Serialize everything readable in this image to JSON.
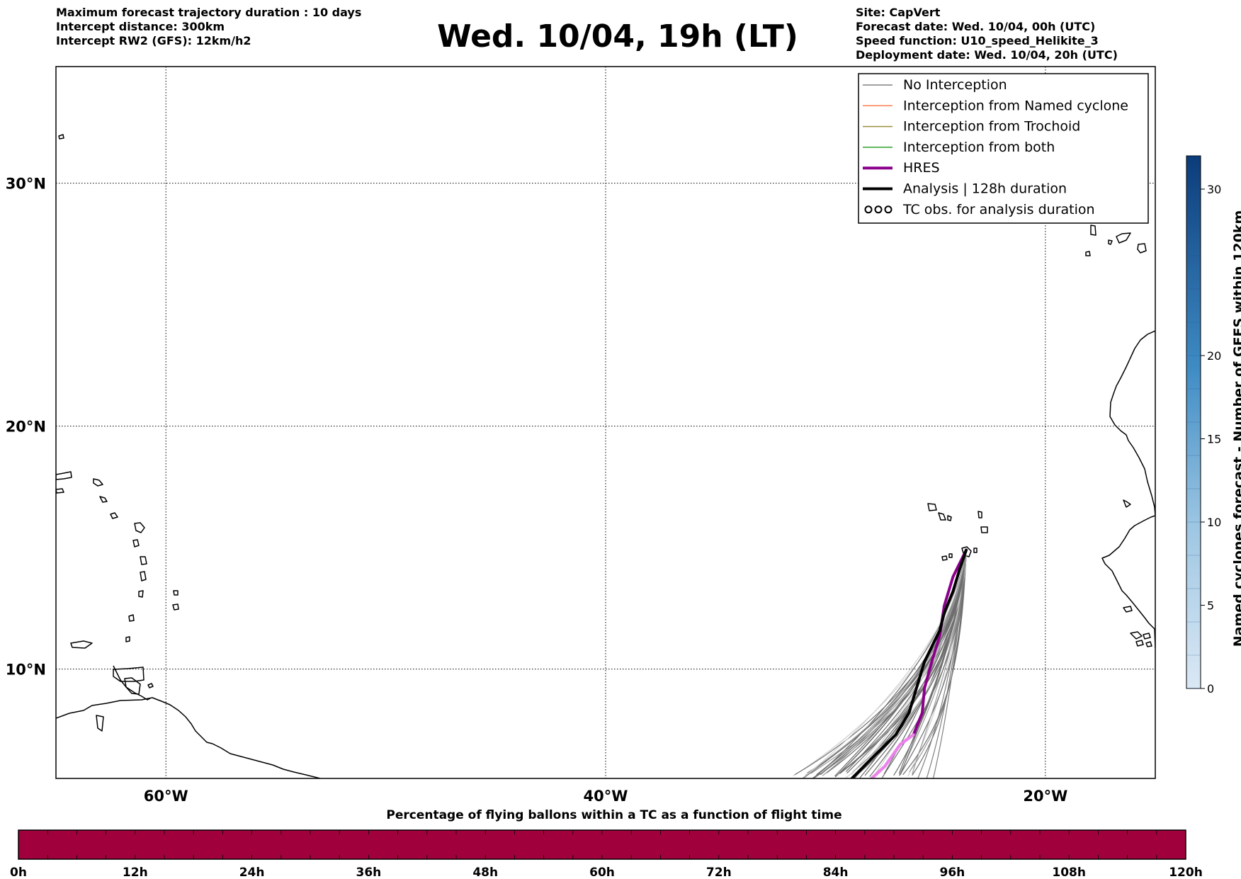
{
  "header": {
    "left_lines": [
      "Maximum forecast trajectory duration : 10 days",
      "Intercept distance: 300km",
      "Intercept RW2 (GFS):  12km/h2"
    ],
    "title": "Wed. 10/04, 19h (LT)",
    "right_lines": [
      "Site: CapVert",
      "Forecast date: Wed. 10/04, 00h (UTC)",
      "Speed function: U10_speed_Helikite_3",
      "Deployment date: Wed. 10/04, 20h (UTC)"
    ]
  },
  "map": {
    "lon_range": [
      -65,
      -15
    ],
    "lat_range": [
      5.5,
      34.8
    ],
    "lat_ticks": [
      {
        "value": 30,
        "label": "30°N"
      },
      {
        "value": 20,
        "label": "20°N"
      },
      {
        "value": 10,
        "label": "10°N"
      }
    ],
    "lon_ticks": [
      {
        "value": -60,
        "label": "60°W"
      },
      {
        "value": -40,
        "label": "40°W"
      },
      {
        "value": -20,
        "label": "20°W"
      }
    ],
    "grid": "dotted",
    "site": {
      "lon": -23.6,
      "lat": 14.9
    },
    "legend": {
      "placement": "top-right",
      "entries": [
        {
          "label": "No Interception",
          "color": "#808080",
          "style": "thin"
        },
        {
          "label": "Interception from Named cyclone",
          "color": "#ff7f50",
          "style": "thin"
        },
        {
          "label": "Interception from Trochoid",
          "color": "#9c8f3c",
          "style": "thin"
        },
        {
          "label": "Interception from both",
          "color": "#2ca02c",
          "style": "thin"
        },
        {
          "label": "HRES",
          "color": "#8b008b",
          "style": "thick"
        },
        {
          "label": "Analysis | 128h duration",
          "color": "#000000",
          "style": "thick"
        },
        {
          "label": "TC obs. for analysis duration",
          "color": "#000000",
          "style": "symbol"
        }
      ]
    }
  },
  "chart_data": [
    {
      "type": "line",
      "title": "",
      "xlabel": "",
      "ylabel": "",
      "xlim": [
        -65,
        -15
      ],
      "ylim": [
        5.5,
        34.8
      ],
      "series": [
        {
          "name": "HRES",
          "color": "#8b008b",
          "points": [
            [
              -23.6,
              14.9
            ],
            [
              -24.2,
              13.8
            ],
            [
              -24.6,
              12.6
            ],
            [
              -24.8,
              11.4
            ],
            [
              -25.2,
              10.2
            ],
            [
              -25.5,
              9.2
            ],
            [
              -25.6,
              8.2
            ],
            [
              -26.0,
              7.3
            ],
            [
              -26.6,
              6.9
            ],
            [
              -27.3,
              6.0
            ],
            [
              -27.9,
              5.5
            ]
          ]
        },
        {
          "name": "Analysis | 128h duration",
          "color": "#000000",
          "points": [
            [
              -23.6,
              14.9
            ],
            [
              -23.9,
              14.1
            ],
            [
              -24.2,
              13.2
            ],
            [
              -24.6,
              12.3
            ],
            [
              -24.8,
              11.6
            ],
            [
              -25.5,
              10.3
            ],
            [
              -25.8,
              9.4
            ],
            [
              -26.2,
              8.2
            ],
            [
              -26.8,
              7.3
            ],
            [
              -27.7,
              6.5
            ],
            [
              -28.8,
              5.5
            ]
          ]
        }
      ]
    },
    {
      "type": "bar",
      "title": "Percentage of flying ballons within a TC as a function of flight time",
      "categories": [
        "0h",
        "12h",
        "24h",
        "36h",
        "48h",
        "60h",
        "72h",
        "84h",
        "96h",
        "108h",
        "120h"
      ],
      "xlim": [
        0,
        120
      ],
      "fill_color": "#a0003c"
    },
    {
      "type": "heatmap",
      "title": "Named cyclones forecast - Number of GEFS within 120km",
      "ylim": [
        0,
        32
      ],
      "ticks": [
        0,
        5,
        10,
        15,
        20,
        30
      ]
    }
  ]
}
